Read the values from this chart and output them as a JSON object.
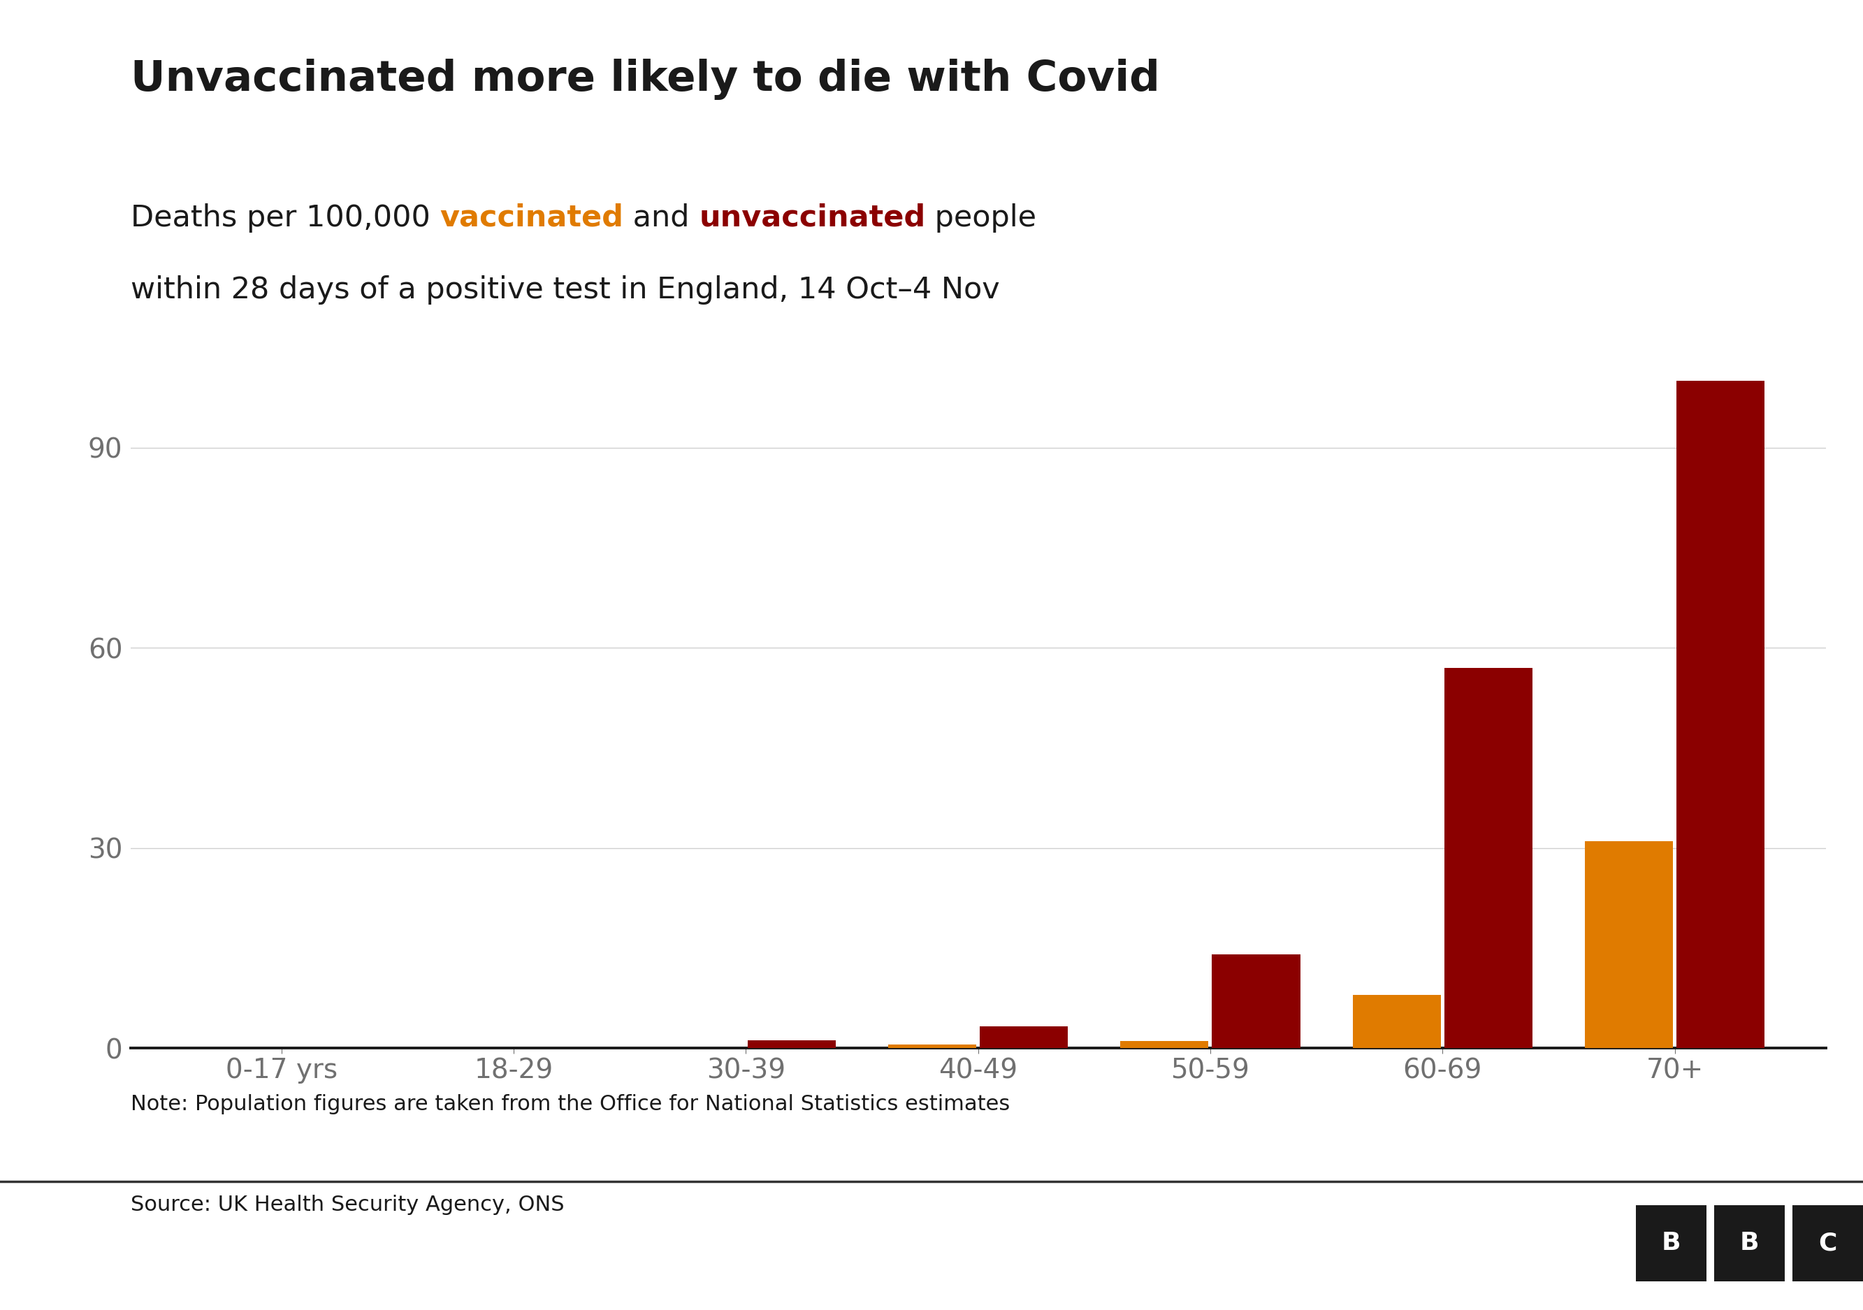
{
  "title": "Unvaccinated more likely to die with Covid",
  "subtitle_line1_parts": [
    {
      "text": "Deaths per 100,000 ",
      "color": "#1a1a1a",
      "bold": false
    },
    {
      "text": "vaccinated",
      "color": "#e07b00",
      "bold": true
    },
    {
      "text": " and ",
      "color": "#1a1a1a",
      "bold": false
    },
    {
      "text": "unvaccinated",
      "color": "#8b0000",
      "bold": true
    },
    {
      "text": " people",
      "color": "#1a1a1a",
      "bold": false
    }
  ],
  "subtitle_line2": "within 28 days of a positive test in England, 14 Oct–4 Nov",
  "categories": [
    "0-17 yrs",
    "18-29",
    "30-39",
    "40-49",
    "50-59",
    "60-69",
    "70+"
  ],
  "vaccinated": [
    0.0,
    0.0,
    0.05,
    0.5,
    1.0,
    8.0,
    31.0
  ],
  "unvaccinated": [
    0.0,
    0.05,
    1.2,
    3.2,
    14.0,
    57.0,
    100.0
  ],
  "unvaccinated_color": "#8b0000",
  "vaccinated_color": "#e07b00",
  "background_color": "#ffffff",
  "ylim": [
    0,
    108
  ],
  "yticks": [
    0,
    30,
    60,
    90
  ],
  "grid_color": "#d0d0d0",
  "tick_label_color": "#707070",
  "note_text": "Note: Population figures are taken from the Office for National Statistics estimates",
  "source_text": "Source: UK Health Security Agency, ONS",
  "title_fontsize": 44,
  "subtitle_fontsize": 31,
  "tick_fontsize": 28,
  "note_fontsize": 22,
  "source_fontsize": 22,
  "bar_width": 0.38,
  "bar_gap": 0.015
}
